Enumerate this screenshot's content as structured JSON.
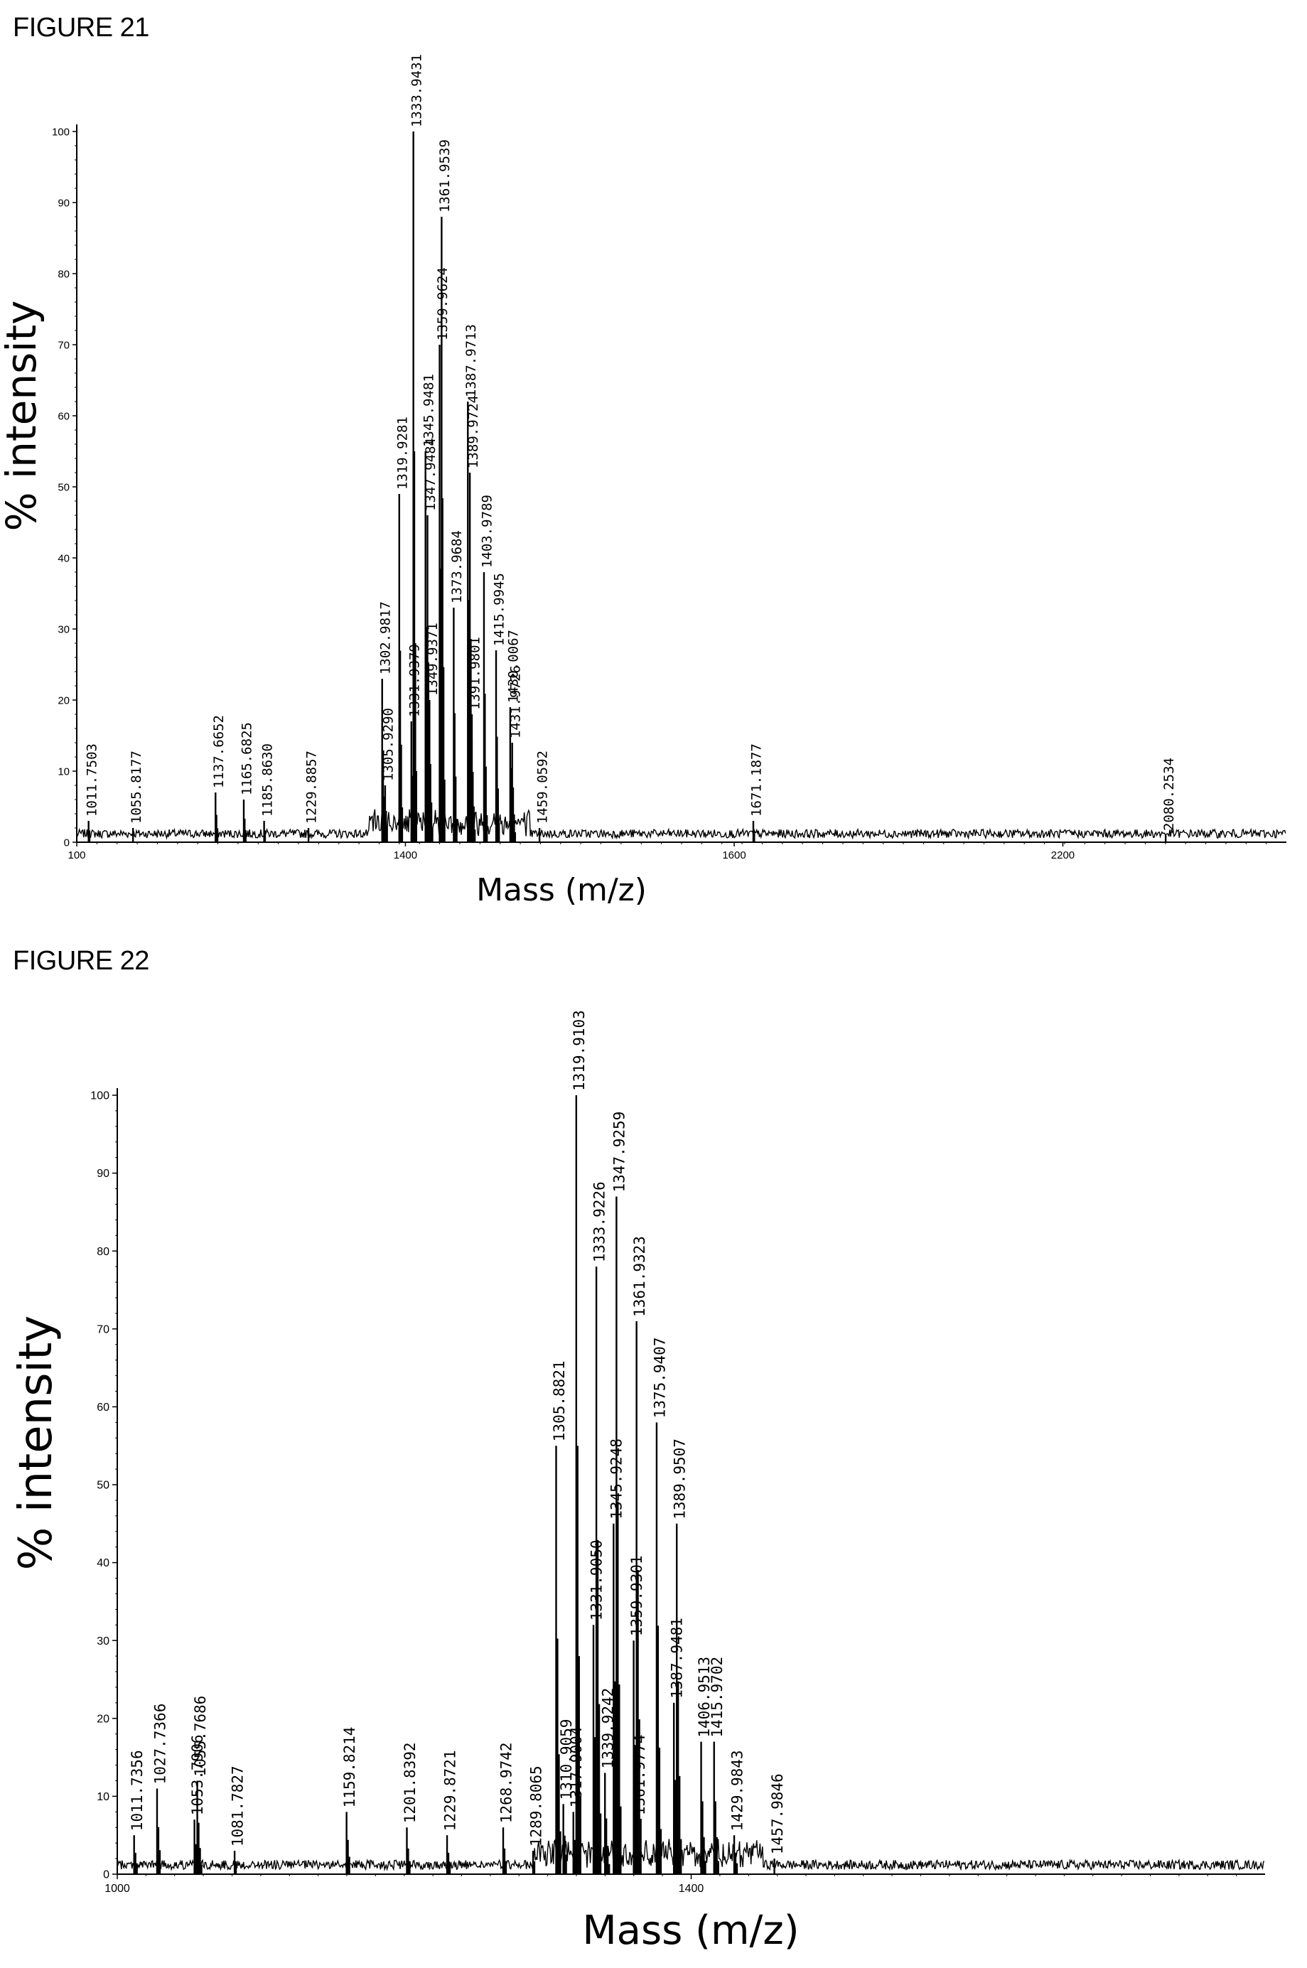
{
  "chart_data": [
    {
      "figure_label": "FIGURE 21",
      "type": "line",
      "xlabel": "Mass (m/z)",
      "ylabel": "% intensity",
      "xlim": [
        1000,
        2200
      ],
      "ylim": [
        0,
        100
      ],
      "x_ticks": [
        "100",
        "1400",
        "1600",
        "2200"
      ],
      "y_ticks": [
        "0",
        "10",
        "20",
        "30",
        "40",
        "50",
        "60",
        "70",
        "80",
        "90",
        "100"
      ],
      "grid": false,
      "peaks": [
        {
          "x": 1011.7503,
          "y": 3,
          "label": "1011.7503"
        },
        {
          "x": 1055.8177,
          "y": 2,
          "label": "1055.8177"
        },
        {
          "x": 1137.6652,
          "y": 7,
          "label": "1137.6652"
        },
        {
          "x": 1165.6825,
          "y": 6,
          "label": "1165.6825"
        },
        {
          "x": 1185.863,
          "y": 3,
          "label": "1185.8630"
        },
        {
          "x": 1229.8857,
          "y": 2,
          "label": "1229.8857"
        },
        {
          "x": 1302.9817,
          "y": 23,
          "label": "1302.9817"
        },
        {
          "x": 1305.929,
          "y": 8,
          "label": "1305.9290"
        },
        {
          "x": 1319.9281,
          "y": 49,
          "label": "1319.9281"
        },
        {
          "x": 1331.9379,
          "y": 17,
          "label": "1331.9379"
        },
        {
          "x": 1333.9431,
          "y": 100,
          "label": "1333.9431"
        },
        {
          "x": 1345.9481,
          "y": 55,
          "label": "1345.9481"
        },
        {
          "x": 1347.9484,
          "y": 46,
          "label": "1347.9484"
        },
        {
          "x": 1349.9371,
          "y": 20,
          "label": "1349.9371"
        },
        {
          "x": 1359.9624,
          "y": 70,
          "label": "1359.9624"
        },
        {
          "x": 1361.9539,
          "y": 88,
          "label": "1361.9539"
        },
        {
          "x": 1373.9684,
          "y": 33,
          "label": "1373.9684"
        },
        {
          "x": 1387.9713,
          "y": 62,
          "label": "1387.9713"
        },
        {
          "x": 1389.9724,
          "y": 52,
          "label": "1389.9724"
        },
        {
          "x": 1391.9801,
          "y": 18,
          "label": "1391.9801"
        },
        {
          "x": 1403.9789,
          "y": 38,
          "label": "1403.9789"
        },
        {
          "x": 1415.9945,
          "y": 27,
          "label": "1415.9945"
        },
        {
          "x": 1430.0067,
          "y": 19,
          "label": "1430.0067"
        },
        {
          "x": 1431.9726,
          "y": 14,
          "label": "1431.9726"
        },
        {
          "x": 1459.0592,
          "y": 2,
          "label": "1459.0592"
        },
        {
          "x": 1671.1877,
          "y": 3,
          "label": "1671.1877"
        },
        {
          "x": 2080.2534,
          "y": 1,
          "label": "2080.2534"
        }
      ]
    },
    {
      "figure_label": "FIGURE 22",
      "type": "line",
      "xlabel": "Mass (m/z)",
      "ylabel": "% intensity",
      "xlim": [
        1000,
        1800
      ],
      "ylim": [
        0,
        100
      ],
      "x_ticks": [
        "1000",
        "1400"
      ],
      "y_ticks": [
        "0",
        "10",
        "20",
        "30",
        "40",
        "50",
        "60",
        "70",
        "80",
        "90",
        "100"
      ],
      "grid": false,
      "peaks": [
        {
          "x": 1011.7356,
          "y": 5,
          "label": "1011.7356"
        },
        {
          "x": 1027.7366,
          "y": 11,
          "label": "1027.7366"
        },
        {
          "x": 1053.7906,
          "y": 7,
          "label": "1053.7906"
        },
        {
          "x": 1055.7686,
          "y": 12,
          "label": "1055.7686"
        },
        {
          "x": 1081.7827,
          "y": 3,
          "label": "1081.7827"
        },
        {
          "x": 1159.8214,
          "y": 8,
          "label": "1159.8214"
        },
        {
          "x": 1201.8392,
          "y": 6,
          "label": "1201.8392"
        },
        {
          "x": 1229.8721,
          "y": 5,
          "label": "1229.8721"
        },
        {
          "x": 1268.9742,
          "y": 6,
          "label": "1268.9742"
        },
        {
          "x": 1289.8065,
          "y": 3,
          "label": "1289.8065"
        },
        {
          "x": 1305.8821,
          "y": 55,
          "label": "1305.8821"
        },
        {
          "x": 1310.9059,
          "y": 9,
          "label": "1310.9059"
        },
        {
          "x": 1317.9004,
          "y": 8,
          "label": "1317.9004"
        },
        {
          "x": 1319.9103,
          "y": 100,
          "label": "1319.9103"
        },
        {
          "x": 1331.905,
          "y": 32,
          "label": "1331.9050"
        },
        {
          "x": 1333.9226,
          "y": 78,
          "label": "1333.9226"
        },
        {
          "x": 1339.9242,
          "y": 13,
          "label": "1339.9242"
        },
        {
          "x": 1345.9248,
          "y": 45,
          "label": "1345.9248"
        },
        {
          "x": 1347.9259,
          "y": 87,
          "label": "1347.9259"
        },
        {
          "x": 1359.9301,
          "y": 30,
          "label": "1359.9301"
        },
        {
          "x": 1361.9323,
          "y": 71,
          "label": "1361.9323"
        },
        {
          "x": 1361.9774,
          "y": 7,
          "label": "1361.9774"
        },
        {
          "x": 1375.9407,
          "y": 58,
          "label": "1375.9407"
        },
        {
          "x": 1387.9481,
          "y": 22,
          "label": "1387.9481"
        },
        {
          "x": 1389.9507,
          "y": 45,
          "label": "1389.9507"
        },
        {
          "x": 1406.9513,
          "y": 17,
          "label": "1406.9513"
        },
        {
          "x": 1415.9702,
          "y": 17,
          "label": "1415.9702"
        },
        {
          "x": 1429.9843,
          "y": 5,
          "label": "1429.9843"
        },
        {
          "x": 1457.9846,
          "y": 2,
          "label": "1457.9846"
        }
      ]
    }
  ]
}
